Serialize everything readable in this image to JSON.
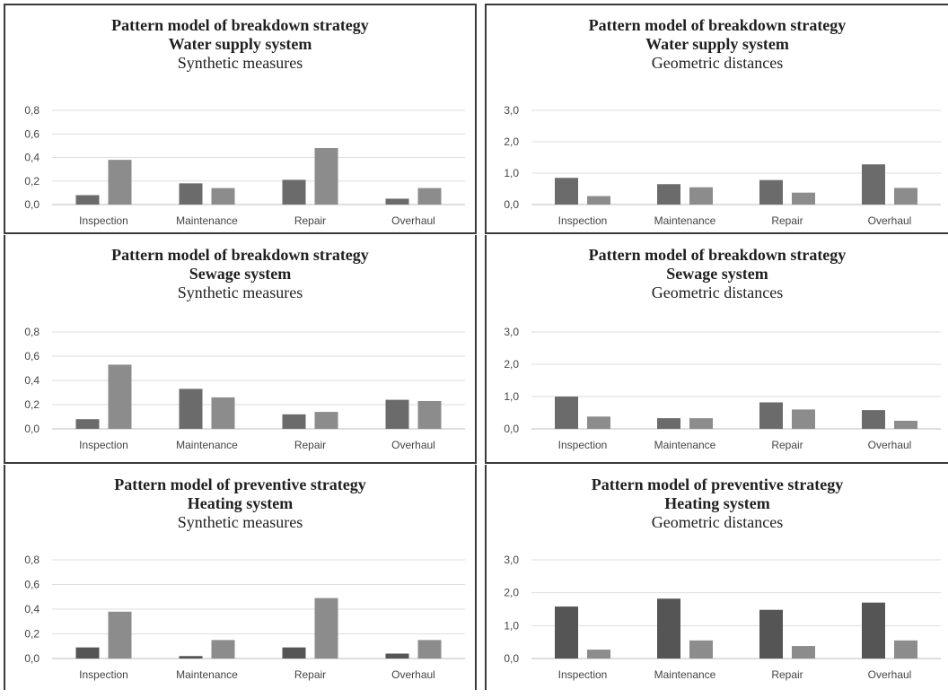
{
  "chart_data": [
    {
      "type": "bar",
      "title": "Pattern model of breakdown strategy",
      "subtitle": "Water supply system",
      "subtitle2": "Synthetic measures",
      "categories": [
        "Inspection",
        "Maintenance",
        "Repair",
        "Overhaul"
      ],
      "series": [
        {
          "values": [
            0.08,
            0.18,
            0.21,
            0.05
          ],
          "color": "#6b6b6b"
        },
        {
          "values": [
            0.38,
            0.14,
            0.48,
            0.14
          ],
          "color": "#8c8c8c"
        }
      ],
      "yticks": [
        "0,0",
        "0,2",
        "0,4",
        "0,6",
        "0,8"
      ],
      "ylim": [
        0,
        0.8
      ],
      "grid": true
    },
    {
      "type": "bar",
      "title": "Pattern model of breakdown strategy",
      "subtitle": "Water supply system",
      "subtitle2": "Geometric distances",
      "categories": [
        "Inspection",
        "Maintenance",
        "Repair",
        "Overhaul"
      ],
      "series": [
        {
          "values": [
            0.85,
            0.65,
            0.78,
            1.28
          ],
          "color": "#6b6b6b"
        },
        {
          "values": [
            0.27,
            0.55,
            0.38,
            0.53
          ],
          "color": "#8c8c8c"
        }
      ],
      "yticks": [
        "0,0",
        "1,0",
        "2,0",
        "3,0"
      ],
      "ylim": [
        0,
        3.0
      ],
      "grid": true
    },
    {
      "type": "bar",
      "title": "Pattern model of breakdown strategy",
      "subtitle": "Sewage system",
      "subtitle2": "Synthetic measures",
      "categories": [
        "Inspection",
        "Maintenance",
        "Repair",
        "Overhaul"
      ],
      "series": [
        {
          "values": [
            0.08,
            0.33,
            0.12,
            0.24
          ],
          "color": "#6b6b6b"
        },
        {
          "values": [
            0.53,
            0.26,
            0.14,
            0.23
          ],
          "color": "#8c8c8c"
        }
      ],
      "yticks": [
        "0,0",
        "0,2",
        "0,4",
        "0,6",
        "0,8"
      ],
      "ylim": [
        0,
        0.8
      ],
      "grid": true
    },
    {
      "type": "bar",
      "title": "Pattern model of breakdown strategy",
      "subtitle": "Sewage system",
      "subtitle2": "Geometric distances",
      "categories": [
        "Inspection",
        "Maintenance",
        "Repair",
        "Overhaul"
      ],
      "series": [
        {
          "values": [
            1.0,
            0.33,
            0.82,
            0.58
          ],
          "color": "#6b6b6b"
        },
        {
          "values": [
            0.38,
            0.33,
            0.6,
            0.25
          ],
          "color": "#8c8c8c"
        }
      ],
      "yticks": [
        "0,0",
        "1,0",
        "2,0",
        "3,0"
      ],
      "ylim": [
        0,
        3.0
      ],
      "grid": true
    },
    {
      "type": "bar",
      "title": "Pattern model of preventive strategy",
      "subtitle": "Heating system",
      "subtitle2": "Synthetic measures",
      "categories": [
        "Inspection",
        "Maintenance",
        "Repair",
        "Overhaul"
      ],
      "series": [
        {
          "values": [
            0.09,
            0.02,
            0.09,
            0.04
          ],
          "color": "#555555"
        },
        {
          "values": [
            0.38,
            0.15,
            0.49,
            0.15
          ],
          "color": "#8c8c8c"
        }
      ],
      "yticks": [
        "0,0",
        "0,2",
        "0,4",
        "0,6",
        "0,8"
      ],
      "ylim": [
        0,
        0.8
      ],
      "grid": true
    },
    {
      "type": "bar",
      "title": "Pattern model of preventive strategy",
      "subtitle": "Heating system",
      "subtitle2": "Geometric distances",
      "categories": [
        "Inspection",
        "Maintenance",
        "Repair",
        "Overhaul"
      ],
      "series": [
        {
          "values": [
            1.58,
            1.82,
            1.48,
            1.7
          ],
          "color": "#555555"
        },
        {
          "values": [
            0.27,
            0.55,
            0.38,
            0.55
          ],
          "color": "#8c8c8c"
        }
      ],
      "yticks": [
        "0,0",
        "1,0",
        "2,0",
        "3,0"
      ],
      "ylim": [
        0,
        3.0
      ],
      "grid": true
    }
  ]
}
